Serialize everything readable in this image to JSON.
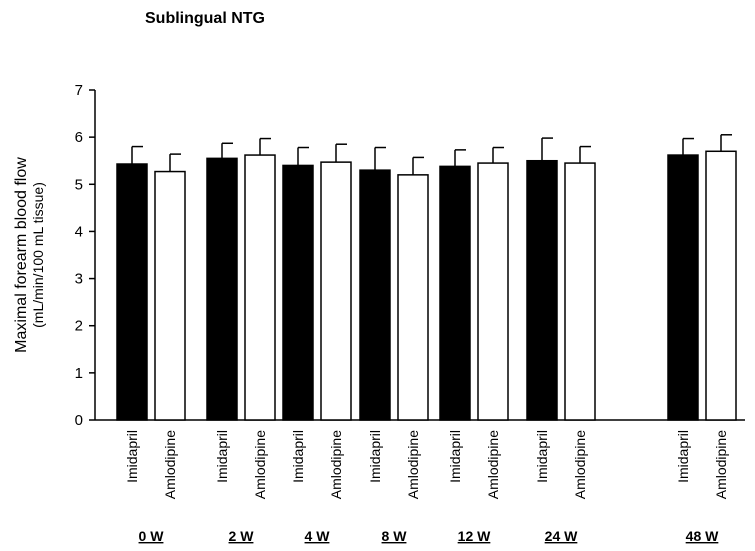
{
  "chart_data": {
    "type": "bar",
    "title": "Sublingual NTG",
    "y_label": [
      "Maximal forearm blood flow",
      "(mL/min/100 mL tissue)"
    ],
    "categories": [
      "0 W",
      "2 W",
      "4 W",
      "8 W",
      "12 W",
      "24 W",
      "48 W"
    ],
    "series": [
      {
        "name": "Imidapril",
        "color": "#000000",
        "values": [
          5.43,
          5.55,
          5.4,
          5.3,
          5.38,
          5.5,
          5.62
        ],
        "errors": [
          0.37,
          0.32,
          0.38,
          0.48,
          0.35,
          0.48,
          0.35
        ]
      },
      {
        "name": "Amlodipine",
        "color": "#ffffff",
        "values": [
          5.27,
          5.62,
          5.47,
          5.2,
          5.45,
          5.45,
          5.7
        ],
        "errors": [
          0.37,
          0.35,
          0.38,
          0.37,
          0.33,
          0.35,
          0.35
        ]
      }
    ],
    "ylim": [
      0,
      7
    ],
    "yticks": [
      0,
      1,
      2,
      3,
      4,
      5,
      6,
      7
    ],
    "grid": false
  }
}
